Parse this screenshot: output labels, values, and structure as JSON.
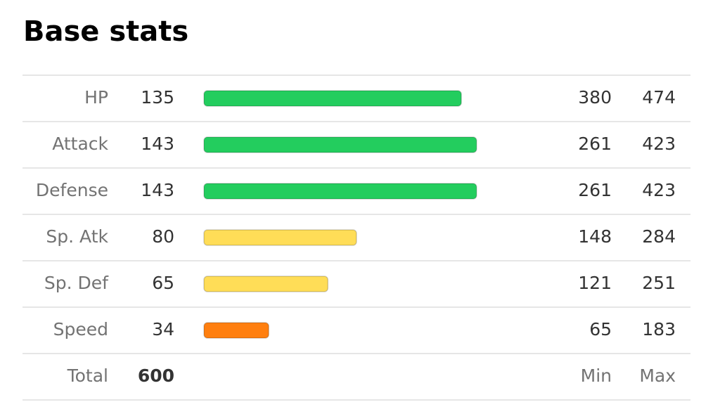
{
  "title": "Base stats",
  "rows": [
    {
      "label": "HP",
      "value": 135,
      "min": 380,
      "max": 474,
      "color": "#23cd5e"
    },
    {
      "label": "Attack",
      "value": 143,
      "min": 261,
      "max": 423,
      "color": "#23cd5e"
    },
    {
      "label": "Defense",
      "value": 143,
      "min": 261,
      "max": 423,
      "color": "#23cd5e"
    },
    {
      "label": "Sp. Atk",
      "value": 80,
      "min": 148,
      "max": 284,
      "color": "#ffdd57"
    },
    {
      "label": "Sp. Def",
      "value": 65,
      "min": 121,
      "max": 251,
      "color": "#ffdd57"
    },
    {
      "label": "Speed",
      "value": 34,
      "min": 65,
      "max": 183,
      "color": "#ff7f0f"
    }
  ],
  "total": {
    "label": "Total",
    "value": 600,
    "min_label": "Min",
    "max_label": "Max"
  }
}
